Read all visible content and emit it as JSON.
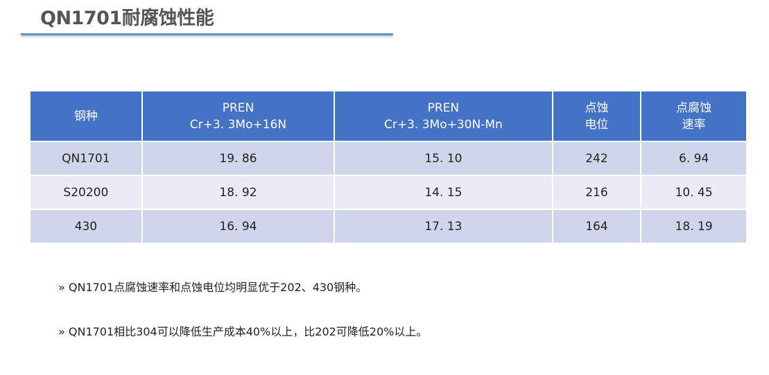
{
  "title": "QN1701耐腐蚀性能",
  "table": {
    "headers": [
      [
        "钢种"
      ],
      [
        "PREN",
        "Cr+3. 3Mo+16N"
      ],
      [
        "PREN",
        "Cr+3. 3Mo+30N-Mn"
      ],
      [
        "点蚀",
        "电位"
      ],
      [
        "点腐蚀",
        "速率"
      ]
    ],
    "rows": [
      [
        "QN1701",
        "19. 86",
        "15. 10",
        "242",
        "6. 94"
      ],
      [
        "S20200",
        "18. 92",
        "14. 15",
        "216",
        "10. 45"
      ],
      [
        "430",
        "16. 94",
        "17. 13",
        "164",
        "18. 19"
      ]
    ]
  },
  "bullets": [
    "»  QN1701点腐蚀速率和点蚀电位均明显优于202、430钢种。",
    "»  QN1701相比304可以降低生产成本40%以上，比202可降低20%以上。"
  ],
  "colors": {
    "header": "#4472c4",
    "row_odd": "#cfd5ea",
    "row_even": "#e9ebf5",
    "rule": "#5b8fc7"
  }
}
